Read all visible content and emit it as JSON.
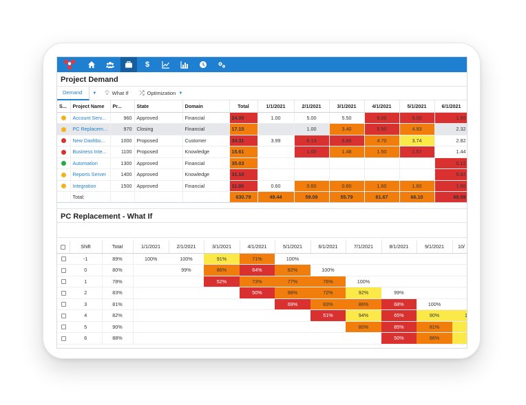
{
  "colors": {
    "red": "#d93030",
    "orange": "#f07d0c",
    "yellow": "#fbe94a",
    "green": "#27a844",
    "amber": "#f4b21d",
    "nav": "#1f7fd0"
  },
  "nav": {
    "icons": [
      "home-icon",
      "users-icon",
      "briefcase-icon",
      "dollar-icon",
      "line-chart-icon",
      "bar-chart-icon",
      "clock-icon",
      "settings-icon"
    ],
    "active_index": 2,
    "dollar_glyph": "$"
  },
  "project_demand": {
    "title": "Project Demand",
    "toolbar": {
      "demand_label": "Demand",
      "whatif_label": "What If",
      "optimization_label": "Optimization"
    },
    "columns": [
      "S...",
      "Project Name",
      "Pr...",
      "State",
      "Domain",
      "Total",
      "1/1/2021",
      "2/1/2021",
      "3/1/2021",
      "4/1/2021",
      "5/1/2021",
      "6/1/2021"
    ],
    "rows": [
      {
        "status": "amber",
        "name": "Account Serv...",
        "pr": "960",
        "state": "Approved",
        "domain": "Financial",
        "total": "24.00",
        "total_c": "red",
        "cells": [
          [
            "1.00",
            ""
          ],
          [
            "5.00",
            ""
          ],
          [
            "5.50",
            ""
          ],
          [
            "6.00",
            "red"
          ],
          [
            "5.00",
            "red"
          ],
          [
            "1.50",
            "red"
          ]
        ]
      },
      {
        "status": "amber",
        "name": "PC Replacem...",
        "pr": "970",
        "state": "Closing",
        "domain": "Financial",
        "total": "17.15",
        "total_c": "orange",
        "selected": true,
        "cells": [
          [
            "",
            ""
          ],
          [
            "1.00",
            ""
          ],
          [
            "3.40",
            "orange"
          ],
          [
            "5.50",
            "red"
          ],
          [
            "4.93",
            "orange"
          ],
          [
            "2.32",
            ""
          ]
        ]
      },
      {
        "status": "red",
        "name": "New Dashbo...",
        "pr": "1000",
        "state": "Proposed",
        "domain": "Customer",
        "total": "34.31",
        "total_c": "red",
        "cells": [
          [
            "3.99",
            ""
          ],
          [
            "6.13",
            "red"
          ],
          [
            "6.86",
            "red"
          ],
          [
            "4.70",
            "orange"
          ],
          [
            "3.74",
            "yellow"
          ],
          [
            "2.82",
            ""
          ]
        ]
      },
      {
        "status": "red",
        "name": "Business Inte...",
        "pr": "1100",
        "state": "Proposed",
        "domain": "Knowledge",
        "total": "15.61",
        "total_c": "orange",
        "cells": [
          [
            "",
            ""
          ],
          [
            "1.00",
            "red"
          ],
          [
            "1.48",
            "orange"
          ],
          [
            "1.50",
            "orange"
          ],
          [
            "1.57",
            "red"
          ],
          [
            "1.44",
            ""
          ]
        ]
      },
      {
        "status": "green",
        "name": "Automation",
        "pr": "1300",
        "state": "Approved",
        "domain": "Financial",
        "total": "35.03",
        "total_c": "orange",
        "cells": [
          [
            "",
            ""
          ],
          [
            "",
            ""
          ],
          [
            "",
            ""
          ],
          [
            "",
            ""
          ],
          [
            "",
            ""
          ],
          [
            "0.12",
            "red"
          ]
        ]
      },
      {
        "status": "amber",
        "name": "Reports Server",
        "pr": "1400",
        "state": "Approved",
        "domain": "Knowledge",
        "total": "31.10",
        "total_c": "red",
        "cells": [
          [
            "",
            ""
          ],
          [
            "",
            ""
          ],
          [
            "",
            ""
          ],
          [
            "",
            ""
          ],
          [
            "",
            ""
          ],
          [
            "5.82",
            "red"
          ]
        ]
      },
      {
        "status": "amber",
        "name": "Integration",
        "pr": "1500",
        "state": "Approved",
        "domain": "Financial",
        "total": "11.00",
        "total_c": "red",
        "cells": [
          [
            "0.60",
            ""
          ],
          [
            "0.60",
            "orange"
          ],
          [
            "0.60",
            "orange"
          ],
          [
            "1.60",
            "orange"
          ],
          [
            "1.60",
            "orange"
          ],
          [
            "1.60",
            "red"
          ]
        ]
      }
    ],
    "totals": {
      "label": "Total:",
      "total": "630.79",
      "cells": [
        [
          "49.44",
          "orange"
        ],
        [
          "59.09",
          "orange"
        ],
        [
          "55.79",
          "orange"
        ],
        [
          "61.67",
          "orange"
        ],
        [
          "66.10",
          "orange"
        ],
        [
          "68.59",
          "red"
        ]
      ]
    }
  },
  "what_if": {
    "title": "PC Replacement - What If",
    "columns": [
      "Shift",
      "Total",
      "1/1/2021",
      "2/1/2021",
      "3/1/2021",
      "4/1/2021",
      "5/1/2021",
      "6/1/2021",
      "7/1/2021",
      "8/1/2021",
      "9/1/2021",
      "10/"
    ],
    "rows": [
      {
        "shift": "-1",
        "total": "89%",
        "cells": [
          [
            "100%",
            ""
          ],
          [
            "100%",
            ""
          ],
          [
            "91%",
            "yellow"
          ],
          [
            "71%",
            "orange"
          ],
          [
            "100%",
            ""
          ],
          [
            "",
            ""
          ],
          [
            "",
            ""
          ],
          [
            "",
            ""
          ],
          [
            "",
            ""
          ],
          [
            "",
            ""
          ]
        ]
      },
      {
        "shift": "0",
        "total": "80%",
        "cells": [
          [
            "",
            ""
          ],
          [
            "99%",
            ""
          ],
          [
            "86%",
            "orange"
          ],
          [
            "64%",
            "red"
          ],
          [
            "82%",
            "orange"
          ],
          [
            "100%",
            ""
          ],
          [
            "",
            ""
          ],
          [
            "",
            ""
          ],
          [
            "",
            ""
          ],
          [
            "",
            ""
          ]
        ]
      },
      {
        "shift": "1",
        "total": "78%",
        "cells": [
          [
            "",
            ""
          ],
          [
            "",
            ""
          ],
          [
            "52%",
            "red"
          ],
          [
            "73%",
            "orange"
          ],
          [
            "77%",
            "orange"
          ],
          [
            "76%",
            "orange"
          ],
          [
            "100%",
            ""
          ],
          [
            "",
            ""
          ],
          [
            "",
            ""
          ],
          [
            "",
            ""
          ]
        ]
      },
      {
        "shift": "2",
        "total": "83%",
        "cells": [
          [
            "",
            ""
          ],
          [
            "",
            ""
          ],
          [
            "",
            ""
          ],
          [
            "50%",
            "red"
          ],
          [
            "88%",
            "orange"
          ],
          [
            "72%",
            "orange"
          ],
          [
            "92%",
            "yellow"
          ],
          [
            "99%",
            ""
          ],
          [
            "",
            ""
          ],
          [
            "",
            ""
          ]
        ]
      },
      {
        "shift": "3",
        "total": "81%",
        "cells": [
          [
            "",
            ""
          ],
          [
            "",
            ""
          ],
          [
            "",
            ""
          ],
          [
            "",
            ""
          ],
          [
            "69%",
            "red"
          ],
          [
            "83%",
            "orange"
          ],
          [
            "86%",
            "orange"
          ],
          [
            "68%",
            "red"
          ],
          [
            "100%",
            ""
          ],
          [
            "",
            ""
          ]
        ]
      },
      {
        "shift": "4",
        "total": "82%",
        "cells": [
          [
            "",
            ""
          ],
          [
            "",
            ""
          ],
          [
            "",
            ""
          ],
          [
            "",
            ""
          ],
          [
            "",
            ""
          ],
          [
            "51%",
            "red"
          ],
          [
            "94%",
            "yellow"
          ],
          [
            "65%",
            "red"
          ],
          [
            "90%",
            "yellow"
          ],
          [
            "10",
            "yellow"
          ]
        ]
      },
      {
        "shift": "5",
        "total": "90%",
        "cells": [
          [
            "",
            ""
          ],
          [
            "",
            ""
          ],
          [
            "",
            ""
          ],
          [
            "",
            ""
          ],
          [
            "",
            ""
          ],
          [
            "",
            ""
          ],
          [
            "80%",
            "orange"
          ],
          [
            "85%",
            "red"
          ],
          [
            "81%",
            "orange"
          ],
          [
            "9",
            "yellow"
          ]
        ]
      },
      {
        "shift": "6",
        "total": "88%",
        "cells": [
          [
            "",
            ""
          ],
          [
            "",
            ""
          ],
          [
            "",
            ""
          ],
          [
            "",
            ""
          ],
          [
            "",
            ""
          ],
          [
            "",
            ""
          ],
          [
            "",
            ""
          ],
          [
            "50%",
            "red"
          ],
          [
            "86%",
            "orange"
          ],
          [
            "9",
            "yellow"
          ]
        ]
      }
    ]
  }
}
